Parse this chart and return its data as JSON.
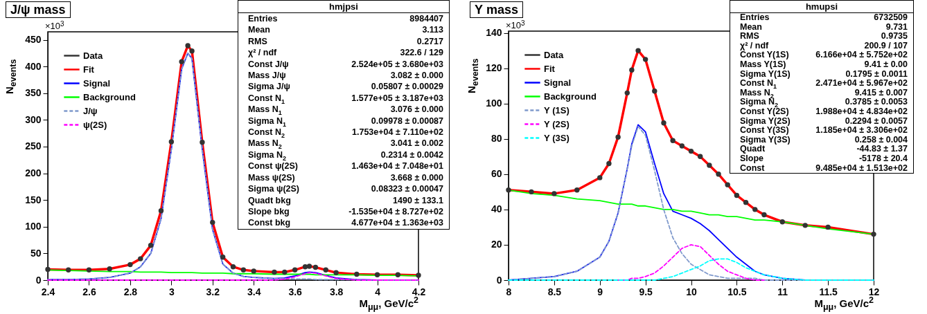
{
  "chart_data": [
    {
      "type": "line",
      "title": "J/ψ mass",
      "xlabel": "M$_{μμ}$, GeV/c$^{2}$",
      "ylabel": "N$_{events}$",
      "xlim": [
        2.4,
        4.2
      ],
      "xticks": [
        2.4,
        2.6,
        2.8,
        3,
        3.2,
        3.4,
        3.6,
        3.8,
        4,
        4.2
      ],
      "ylim": [
        0,
        465
      ],
      "yticks": [
        0,
        50,
        100,
        150,
        200,
        250,
        300,
        350,
        400,
        450
      ],
      "legend": "top left",
      "grid": false,
      "annotations": [
        "×10$^{3}$",
        "hmjpsi",
        "Entries",
        "8984407",
        "Mean",
        "3.113",
        "RMS",
        "0.2717",
        "χ² / ndf",
        "322.6 / 129",
        "Const J/ψ",
        "2.524e+05 ± 3.680e+03",
        "Mass  J/ψ",
        "3.082 ± 0.000",
        "Sigma J/ψ",
        "0.05807 ± 0.00029",
        "Const N$_{1}$",
        "1.577e+05 ± 3.187e+03",
        "Mass  N$_{1}$",
        "3.076 ± 0.000",
        "Sigma N$_{1}$",
        "0.09978 ± 0.00087",
        "Const N$_{2}$",
        "1.753e+04 ± 7.110e+02",
        "Mass  N$_{2}$",
        "3.041 ± 0.002",
        "Sigma N$_{2}$",
        "0.2314 ± 0.0042",
        "Const ψ(2S)",
        "1.463e+04 ± 7.048e+01",
        "Mass  ψ(2S)",
        "3.668 ± 0.000",
        "Sigma ψ(2S)",
        "0.08323 ± 0.00047",
        "Quadt bkg",
        "1490 ± 133.1",
        "Slope bkg",
        "-1.535e+04 ± 8.727e+02",
        "Const bkg",
        "4.677e+04 ± 1.363e+03"
      ],
      "x": [
        2.4,
        2.5,
        2.6,
        2.7,
        2.8,
        2.85,
        2.9,
        2.95,
        3.0,
        3.05,
        3.08,
        3.1,
        3.15,
        3.2,
        3.25,
        3.3,
        3.35,
        3.4,
        3.5,
        3.55,
        3.6,
        3.65,
        3.67,
        3.7,
        3.75,
        3.8,
        3.9,
        4.0,
        4.1,
        4.2
      ],
      "series": [
        {
          "name": "Data",
          "type": "scatter",
          "marker": "circle",
          "color": "#333333",
          "values": [
            20,
            19,
            19,
            21,
            29,
            40,
            65,
            130,
            259,
            409,
            439,
            429,
            258,
            108,
            43,
            25,
            19,
            17,
            15,
            15,
            19,
            25,
            26,
            24,
            19,
            14,
            11,
            10,
            10,
            9
          ]
        },
        {
          "name": "Fit",
          "color": "#ff0000",
          "line_style": "solid",
          "values": [
            20,
            19,
            19,
            21,
            29,
            40,
            65,
            130,
            259,
            409,
            439,
            429,
            258,
            108,
            43,
            25,
            19,
            17,
            15,
            15,
            19,
            25,
            26,
            24,
            19,
            14,
            11,
            10,
            10,
            9
          ]
        },
        {
          "name": "Signal",
          "color": "#0000ff",
          "line_style": "solid",
          "values": [
            1,
            1,
            2,
            5,
            13,
            25,
            50,
            115,
            245,
            395,
            425,
            415,
            245,
            95,
            30,
            13,
            7,
            5,
            3,
            4,
            8,
            14,
            15,
            14,
            9,
            4,
            1,
            0,
            0,
            0
          ]
        },
        {
          "name": "Background",
          "color": "#00ff00",
          "line_style": "solid",
          "values": [
            19,
            18,
            17,
            16,
            16,
            15,
            15,
            15,
            14,
            14,
            14,
            14,
            13,
            13,
            13,
            12,
            12,
            12,
            11,
            11,
            11,
            11,
            11,
            10,
            10,
            10,
            10,
            9,
            9,
            8
          ]
        },
        {
          "name": "J/ψ",
          "color": "#7f99cc",
          "line_style": "dashed",
          "values": [
            1,
            1,
            2,
            5,
            13,
            25,
            50,
            115,
            245,
            395,
            425,
            415,
            245,
            95,
            30,
            13,
            7,
            5,
            3,
            3,
            2,
            2,
            2,
            1,
            1,
            1,
            1,
            0,
            0,
            0
          ]
        },
        {
          "name": "ψ(2S)",
          "color": "#ff00ff",
          "line_style": "dashed",
          "values": [
            0,
            0,
            0,
            0,
            0,
            0,
            0,
            0,
            0,
            0,
            0,
            0,
            0,
            0,
            0,
            0,
            0,
            0,
            0,
            2,
            6,
            12,
            14,
            13,
            8,
            3,
            0,
            0,
            0,
            0
          ]
        }
      ]
    },
    {
      "type": "line",
      "title": "Υ mass",
      "xlabel": "M$_{μμ}$, GeV/c$^{2}$",
      "ylabel": "N$_{events}$",
      "xlim": [
        8,
        12
      ],
      "xticks": [
        8,
        8.5,
        9,
        9.5,
        10,
        10.5,
        11,
        11.5,
        12
      ],
      "ylim": [
        0,
        141
      ],
      "yticks": [
        0,
        20,
        40,
        60,
        80,
        100,
        120,
        140
      ],
      "legend": "top left",
      "grid": false,
      "annotations": [
        "×10$^{3}$",
        "hmupsi",
        "Entries",
        "6732509",
        "Mean",
        "9.731",
        "RMS",
        "0.9735",
        "χ² / ndf",
        "200.9 / 107",
        "Const Y(1S)",
        "6.166e+04 ± 5.752e+02",
        "Mass  Y(1S)",
        "9.41 ± 0.00",
        "Sigma Y(1S)",
        "0.1795 ± 0.0011",
        "Const N$_{1}$",
        "2.471e+04 ± 5.967e+02",
        "Mass  N$_{2}$",
        "9.415 ± 0.007",
        "Sigma N$_{2}$",
        "0.3785 ± 0.0053",
        "Const Y(2S)",
        "1.988e+04 ± 4.834e+02",
        "Sigma Y(2S)",
        "0.2294 ± 0.0057",
        "Const Y(3S)",
        "1.185e+04 ± 3.306e+02",
        "Sigma Y(3S)",
        "0.258 ± 0.004",
        "Quadt",
        "-44.83 ± 1.37",
        "Slope",
        "-5178 ± 20.4",
        "Const",
        "9.485e+04 ± 1.513e+02"
      ],
      "x": [
        8,
        8.25,
        8.5,
        8.75,
        9,
        9.1,
        9.2,
        9.3,
        9.35,
        9.42,
        9.5,
        9.6,
        9.7,
        9.8,
        9.9,
        10,
        10.1,
        10.2,
        10.3,
        10.4,
        10.5,
        10.6,
        10.7,
        10.8,
        11,
        11.25,
        11.5,
        12
      ],
      "series": [
        {
          "name": "Data",
          "type": "scatter",
          "marker": "circle",
          "color": "#333333",
          "values": [
            51,
            50,
            49,
            51,
            58,
            66,
            81,
            106,
            119,
            130,
            125,
            107,
            89,
            79,
            76,
            73,
            70,
            65,
            60,
            54,
            48,
            44,
            40,
            37,
            33,
            31,
            30,
            26
          ]
        },
        {
          "name": "Fit",
          "color": "#ff0000",
          "line_style": "solid",
          "values": [
            51,
            50,
            49,
            51,
            58,
            66,
            81,
            106,
            119,
            130,
            125,
            107,
            89,
            79,
            76,
            73,
            70,
            65,
            60,
            54,
            48,
            44,
            40,
            37,
            33,
            31,
            30,
            26
          ]
        },
        {
          "name": "Signal",
          "color": "#0000ff",
          "line_style": "solid",
          "values": [
            0,
            1,
            2,
            5,
            13,
            22,
            38,
            63,
            77,
            88,
            84,
            66,
            49,
            39,
            37,
            35,
            32,
            28,
            23,
            18,
            13,
            9,
            5,
            3,
            1,
            0,
            0,
            0
          ]
        },
        {
          "name": "Background",
          "color": "#00ff00",
          "line_style": "solid",
          "values": [
            51,
            49,
            48,
            46,
            45,
            44,
            43,
            43,
            43,
            42,
            42,
            41,
            40,
            40,
            39,
            39,
            38,
            37,
            37,
            36,
            36,
            35,
            34,
            34,
            33,
            31,
            29,
            26
          ]
        },
        {
          "name": "Υ (1S)",
          "color": "#7f99cc",
          "line_style": "dashed",
          "values": [
            0,
            1,
            2,
            5,
            13,
            22,
            38,
            63,
            76,
            87,
            82,
            62,
            40,
            24,
            15,
            9,
            6,
            3,
            2,
            1,
            1,
            1,
            1,
            0,
            0,
            0,
            0,
            0
          ]
        },
        {
          "name": "Υ (2S)",
          "color": "#ff00ff",
          "line_style": "dashed",
          "values": [
            null,
            null,
            null,
            null,
            null,
            null,
            0,
            0,
            1,
            1,
            2,
            4,
            8,
            13,
            18,
            20,
            19,
            14,
            9,
            5,
            3,
            1,
            0,
            0,
            null,
            null,
            null,
            null
          ]
        },
        {
          "name": "Υ (3S)",
          "color": "#00ffff",
          "line_style": "dashed",
          "values": [
            0,
            0,
            0,
            0,
            0,
            0,
            0,
            0,
            0,
            0,
            0,
            0,
            1,
            2,
            4,
            6,
            8,
            11,
            12,
            12,
            10,
            7,
            5,
            3,
            1,
            0,
            0,
            0
          ]
        }
      ]
    }
  ]
}
